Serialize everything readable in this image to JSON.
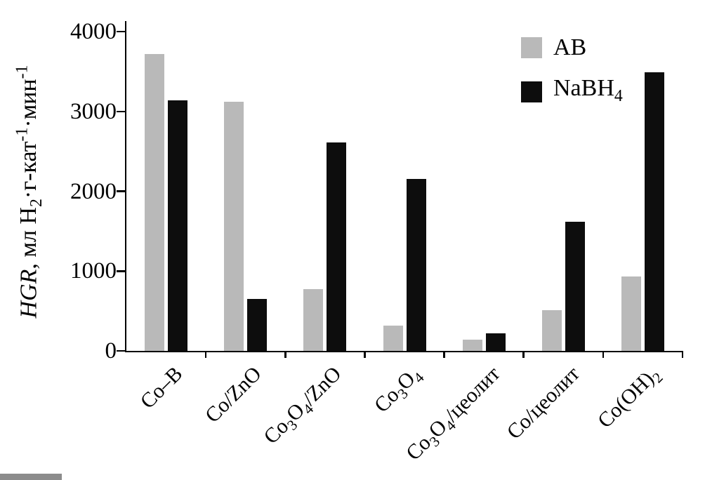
{
  "chart_data": {
    "type": "bar",
    "title": "",
    "categories": [
      "Co–B",
      "Co/ZnO",
      "Co_{3}O_{4}/ZnO",
      "Co_{3}O_{4}",
      "Co_{3}O_{4}/цеолит",
      "Co/цеолит",
      "Co(OH)_{2}"
    ],
    "series": [
      {
        "name": "AB",
        "label": "AB",
        "color": "#b9b9b9",
        "values": [
          3720,
          3120,
          770,
          320,
          140,
          510,
          930
        ]
      },
      {
        "name": "NaBH4",
        "label": "NaBH_{4}",
        "color": "#0d0d0d",
        "values": [
          3140,
          650,
          2610,
          2150,
          220,
          1620,
          3490
        ]
      }
    ],
    "ylabel": "HGR, мл H₂·г-кат⁻¹·мин⁻¹",
    "ylabel_italic": "HGR",
    "ylabel_rest": ", мл H_{2}·г-кат^{-1}·мин^{-1}",
    "xlabel": "",
    "ylim": [
      0,
      4000
    ],
    "yticks": [
      0,
      1000,
      2000,
      3000,
      4000
    ],
    "grid": false,
    "legend_position": "top-right"
  }
}
